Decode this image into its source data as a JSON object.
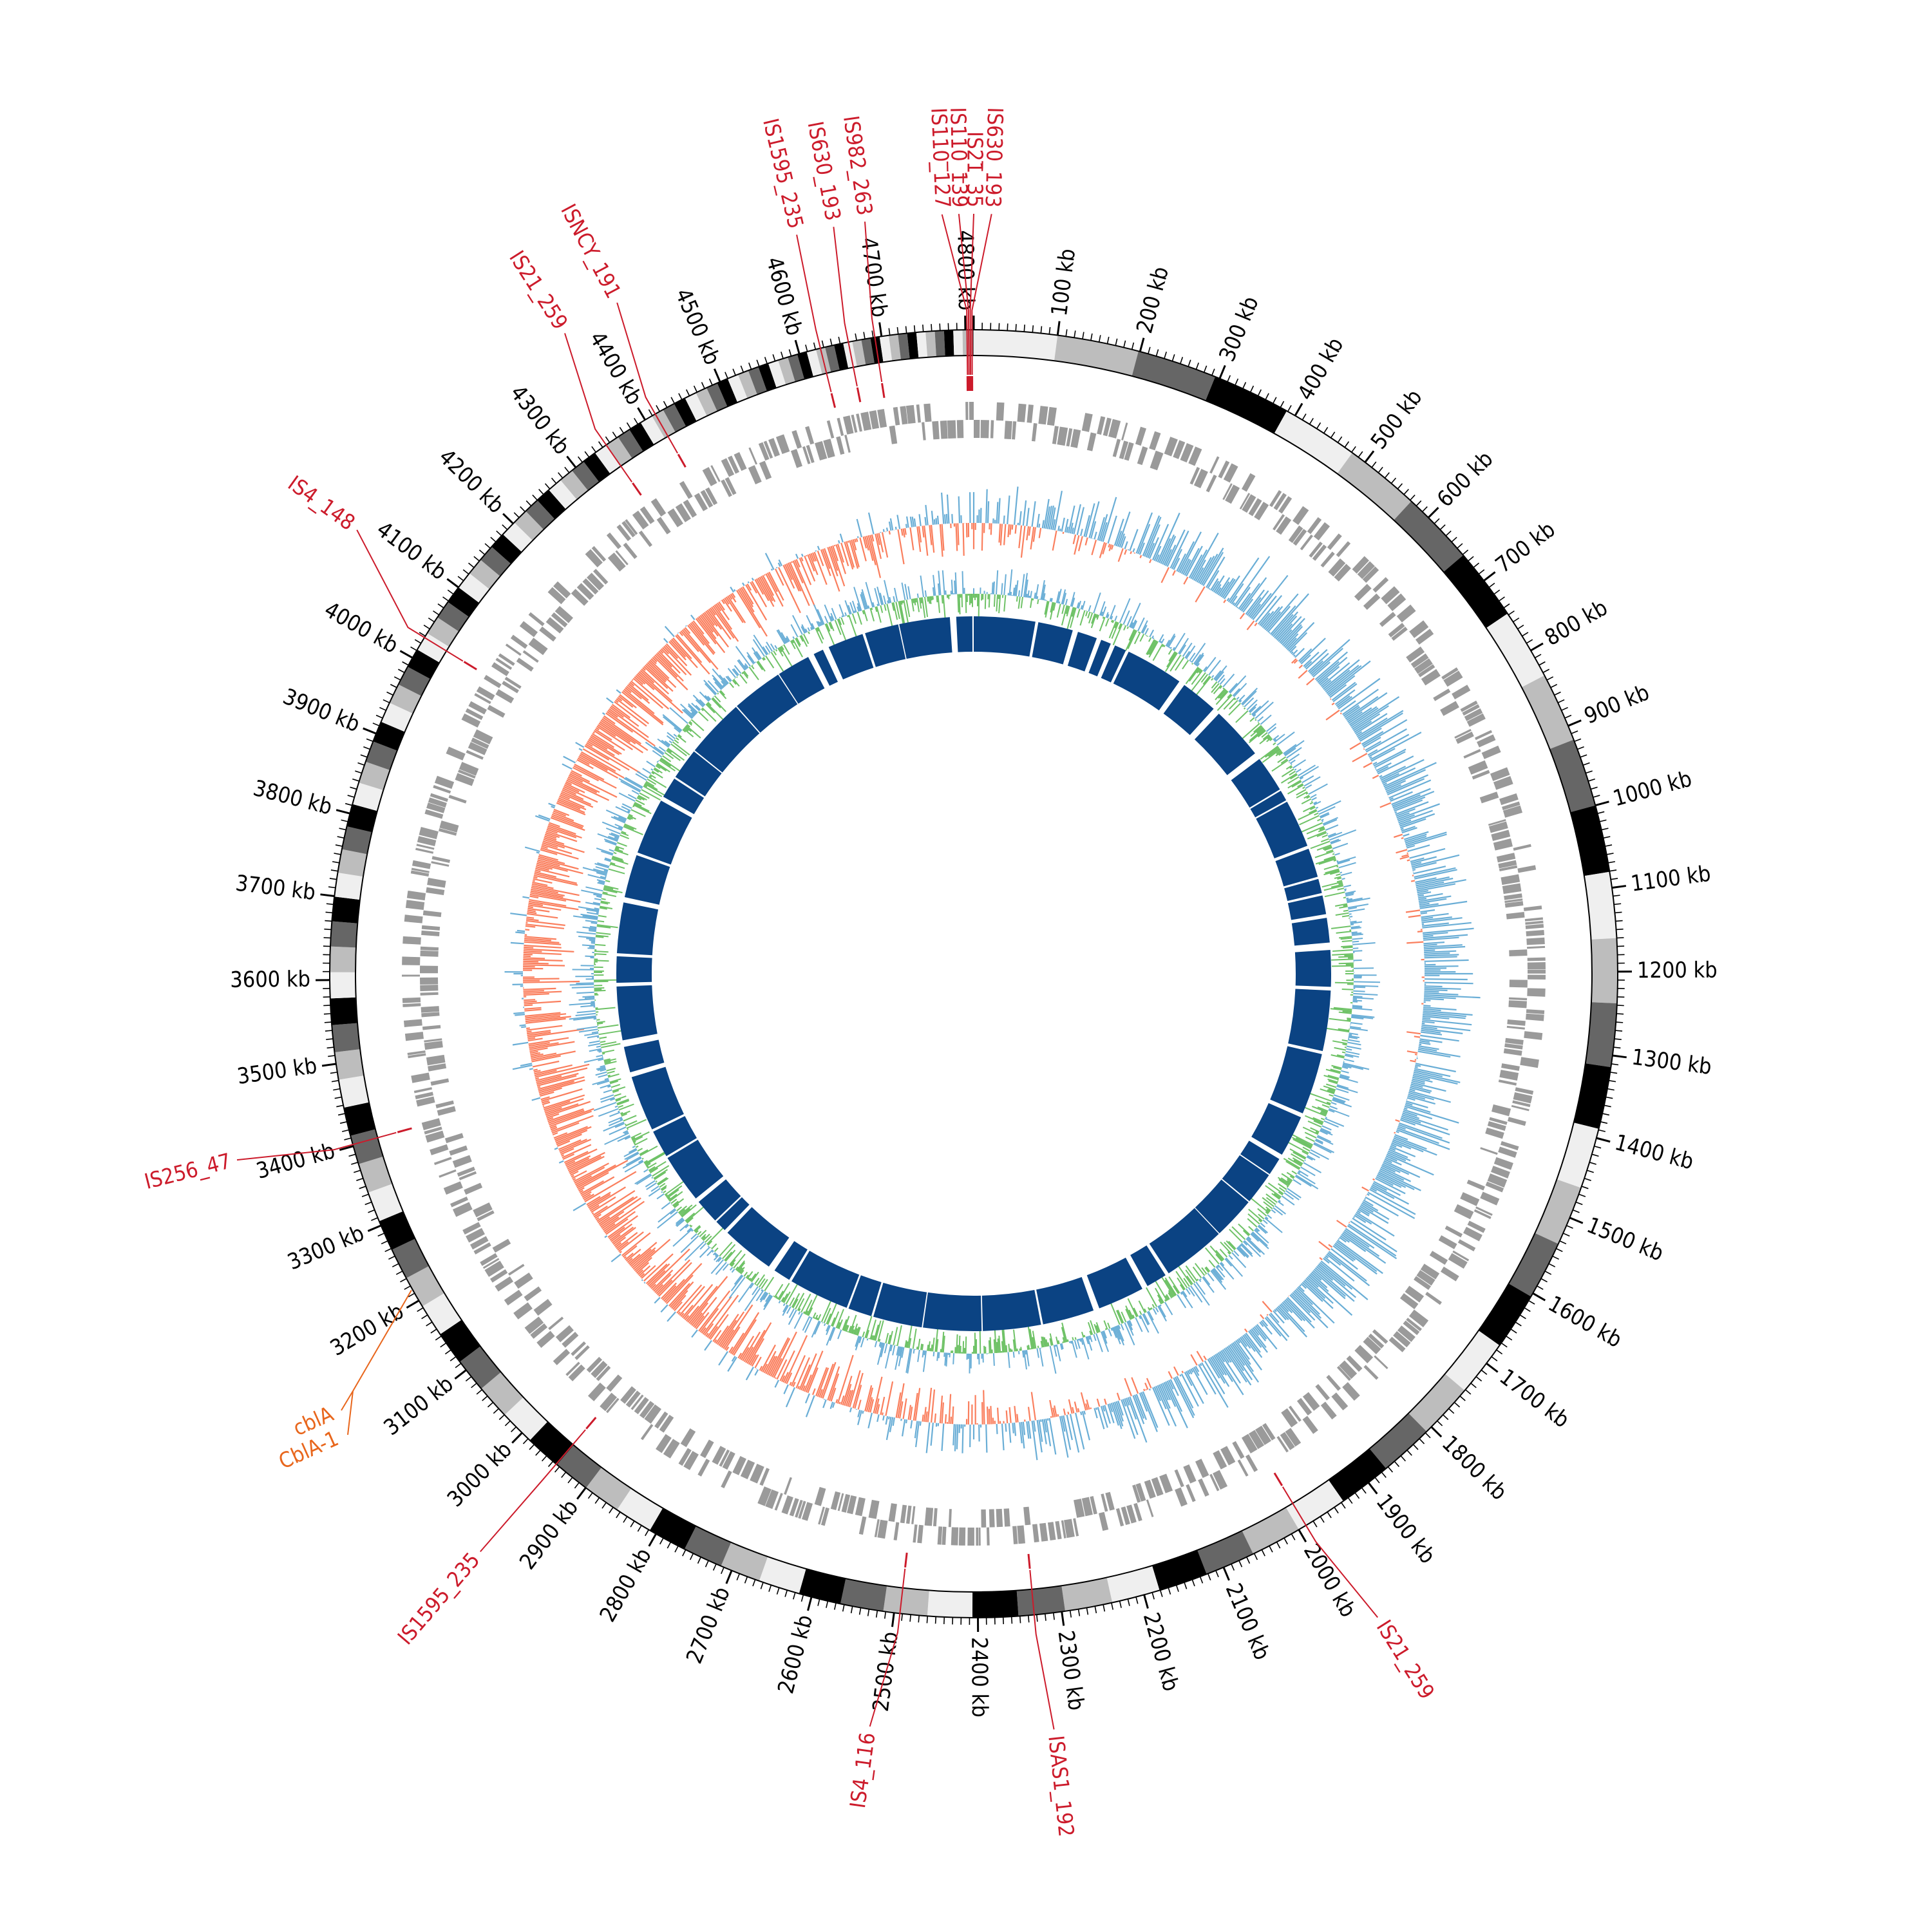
{
  "genome": {
    "length_kb": 4810,
    "tick_labels": [
      "100 kb",
      "200 kb",
      "300 kb",
      "400 kb",
      "500 kb",
      "600 kb",
      "700 kb",
      "800 kb",
      "900 kb",
      "1000 kb",
      "1100 kb",
      "1200 kb",
      "1300 kb",
      "1400 kb",
      "1500 kb",
      "1600 kb",
      "1700 kb",
      "1800 kb",
      "1900 kb",
      "2000 kb",
      "2100 kb",
      "2200 kb",
      "2300 kb",
      "2400 kb",
      "2500 kb",
      "2600 kb",
      "2700 kb",
      "2800 kb",
      "2900 kb",
      "3000 kb",
      "3100 kb",
      "3200 kb",
      "3300 kb",
      "3400 kb",
      "3500 kb",
      "3600 kb",
      "3700 kb",
      "3800 kb",
      "3900 kb",
      "4000 kb",
      "4100 kb",
      "4200 kb",
      "4300 kb",
      "4400 kb",
      "4500 kb",
      "4600 kb",
      "4700 kb",
      "4800 kb"
    ]
  },
  "colors": {
    "insertion_sequence": "#cc1b2b",
    "gene_highlight": "#e8661c",
    "cds_grey": "#9a9a9a",
    "gc_skew_positive": "#6aaed6",
    "gc_skew_negative": "#fa7f5e",
    "gc_content": "#6fc267",
    "inner_blocks": "#0b4383"
  },
  "insertion_sequences": [
    {
      "label": "IS630_193",
      "position_kb": 4808
    },
    {
      "label": "IS21_35",
      "position_kb": 4806
    },
    {
      "label": "IS110_139",
      "position_kb": 4804
    },
    {
      "label": "IS110_127",
      "position_kb": 4802
    },
    {
      "label": "IS982_263",
      "position_kb": 4692
    },
    {
      "label": "IS630_193",
      "position_kb": 4660
    },
    {
      "label": "IS1595_235",
      "position_kb": 4626
    },
    {
      "label": "ISNCY_191",
      "position_kb": 4414
    },
    {
      "label": "IS21_259",
      "position_kb": 4345
    },
    {
      "label": "IS4_148",
      "position_kb": 4028
    },
    {
      "label": "IS256_47",
      "position_kb": 3402
    },
    {
      "label": "IS1595_235",
      "position_kb": 2945
    },
    {
      "label": "IS4_116",
      "position_kb": 2493
    },
    {
      "label": "ISAS1_192",
      "position_kb": 2333
    },
    {
      "label": "IS21_259",
      "position_kb": 1990
    }
  ],
  "highlighted_genes": [
    {
      "labels": [
        "cblA",
        "CblA-1"
      ],
      "position_kb": 3215
    }
  ]
}
